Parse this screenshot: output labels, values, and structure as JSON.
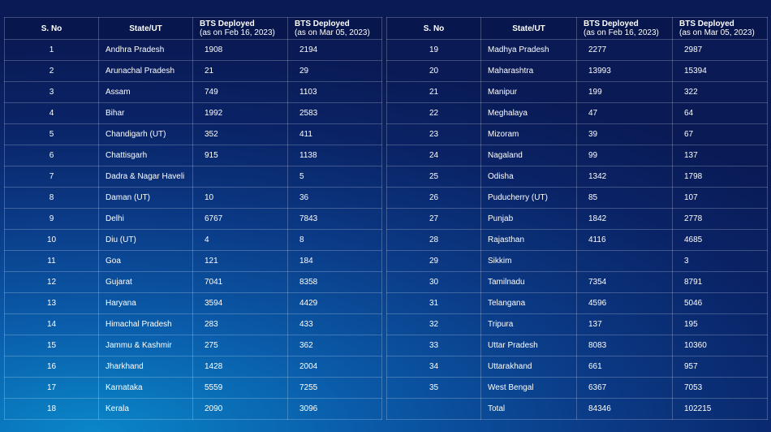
{
  "headers": {
    "sno": "S. No",
    "state": "State/UT",
    "bts1_title": "BTS Deployed",
    "bts1_sub": "(as on Feb 16, 2023)",
    "bts2_title": "BTS Deployed",
    "bts2_sub": "(as on Mar 05, 2023)"
  },
  "left_rows": [
    {
      "sno": "1",
      "state": "Andhra Pradesh",
      "feb": "1908",
      "mar": "2194"
    },
    {
      "sno": "2",
      "state": "Arunachal Pradesh",
      "feb": "21",
      "mar": "29"
    },
    {
      "sno": "3",
      "state": "Assam",
      "feb": "749",
      "mar": "1103"
    },
    {
      "sno": "4",
      "state": "Bihar",
      "feb": "1992",
      "mar": "2583"
    },
    {
      "sno": "5",
      "state": "Chandigarh (UT)",
      "feb": "352",
      "mar": "411"
    },
    {
      "sno": "6",
      "state": "Chattisgarh",
      "feb": "915",
      "mar": "1138"
    },
    {
      "sno": "7",
      "state": "Dadra & Nagar Haveli",
      "feb": "",
      "mar": "5"
    },
    {
      "sno": "8",
      "state": "Daman (UT)",
      "feb": "10",
      "mar": "36"
    },
    {
      "sno": "9",
      "state": "Delhi",
      "feb": "6767",
      "mar": "7843"
    },
    {
      "sno": "10",
      "state": "Diu (UT)",
      "feb": "4",
      "mar": "8"
    },
    {
      "sno": "11",
      "state": "Goa",
      "feb": "121",
      "mar": "184"
    },
    {
      "sno": "12",
      "state": "Gujarat",
      "feb": "7041",
      "mar": "8358"
    },
    {
      "sno": "13",
      "state": "Haryana",
      "feb": "3594",
      "mar": "4429"
    },
    {
      "sno": "14",
      "state": "Himachal Pradesh",
      "feb": "283",
      "mar": "433"
    },
    {
      "sno": "15",
      "state": "Jammu & Kashmir",
      "feb": "275",
      "mar": "362"
    },
    {
      "sno": "16",
      "state": "Jharkhand",
      "feb": "1428",
      "mar": "2004"
    },
    {
      "sno": "17",
      "state": "Karnataka",
      "feb": "5559",
      "mar": "7255"
    },
    {
      "sno": "18",
      "state": "Kerala",
      "feb": "2090",
      "mar": "3096"
    }
  ],
  "right_rows": [
    {
      "sno": "19",
      "state": "Madhya Pradesh",
      "feb": "2277",
      "mar": "2987"
    },
    {
      "sno": "20",
      "state": "Maharashtra",
      "feb": "13993",
      "mar": "15394"
    },
    {
      "sno": "21",
      "state": "Manipur",
      "feb": "199",
      "mar": "322"
    },
    {
      "sno": "22",
      "state": "Meghalaya",
      "feb": "47",
      "mar": "64"
    },
    {
      "sno": "23",
      "state": "Mizoram",
      "feb": "39",
      "mar": "67"
    },
    {
      "sno": "24",
      "state": "Nagaland",
      "feb": "99",
      "mar": "137"
    },
    {
      "sno": "25",
      "state": "Odisha",
      "feb": "1342",
      "mar": "1798"
    },
    {
      "sno": "26",
      "state": "Puducherry (UT)",
      "feb": "85",
      "mar": "107"
    },
    {
      "sno": "27",
      "state": "Punjab",
      "feb": "1842",
      "mar": "2778"
    },
    {
      "sno": "28",
      "state": "Rajasthan",
      "feb": "4116",
      "mar": "4685"
    },
    {
      "sno": "29",
      "state": "Sikkim",
      "feb": "",
      "mar": "3"
    },
    {
      "sno": "30",
      "state": "Tamilnadu",
      "feb": "7354",
      "mar": "8791"
    },
    {
      "sno": "31",
      "state": "Telangana",
      "feb": "4596",
      "mar": "5046"
    },
    {
      "sno": "32",
      "state": "Tripura",
      "feb": "137",
      "mar": "195"
    },
    {
      "sno": "33",
      "state": "Uttar Pradesh",
      "feb": "8083",
      "mar": "10360"
    },
    {
      "sno": "34",
      "state": "Uttarakhand",
      "feb": "661",
      "mar": "957"
    },
    {
      "sno": "35",
      "state": "West Bengal",
      "feb": "6367",
      "mar": "7053"
    },
    {
      "sno": "",
      "state": "Total",
      "feb": "84346",
      "mar": "102215"
    }
  ]
}
